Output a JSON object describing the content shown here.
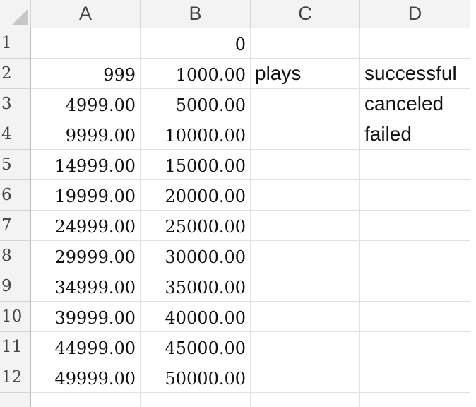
{
  "columns": [
    "A",
    "B",
    "C",
    "D"
  ],
  "rows": [
    {
      "num": "1",
      "cells": [
        "",
        "0",
        "",
        ""
      ]
    },
    {
      "num": "2",
      "cells": [
        "999",
        "1000.00",
        "plays",
        "successful"
      ]
    },
    {
      "num": "3",
      "cells": [
        "4999.00",
        "5000.00",
        "",
        "canceled"
      ]
    },
    {
      "num": "4",
      "cells": [
        "9999.00",
        "10000.00",
        "",
        "failed"
      ]
    },
    {
      "num": "5",
      "cells": [
        "14999.00",
        "15000.00",
        "",
        ""
      ]
    },
    {
      "num": "6",
      "cells": [
        "19999.00",
        "20000.00",
        "",
        ""
      ]
    },
    {
      "num": "7",
      "cells": [
        "24999.00",
        "25000.00",
        "",
        ""
      ]
    },
    {
      "num": "8",
      "cells": [
        "29999.00",
        "30000.00",
        "",
        ""
      ]
    },
    {
      "num": "9",
      "cells": [
        "34999.00",
        "35000.00",
        "",
        ""
      ]
    },
    {
      "num": "10",
      "cells": [
        "39999.00",
        "40000.00",
        "",
        ""
      ]
    },
    {
      "num": "11",
      "cells": [
        "44999.00",
        "45000.00",
        "",
        ""
      ]
    },
    {
      "num": "12",
      "cells": [
        "49999.00",
        "50000.00",
        "",
        ""
      ]
    },
    {
      "num": "",
      "cells": [
        "",
        "",
        "",
        ""
      ]
    }
  ]
}
